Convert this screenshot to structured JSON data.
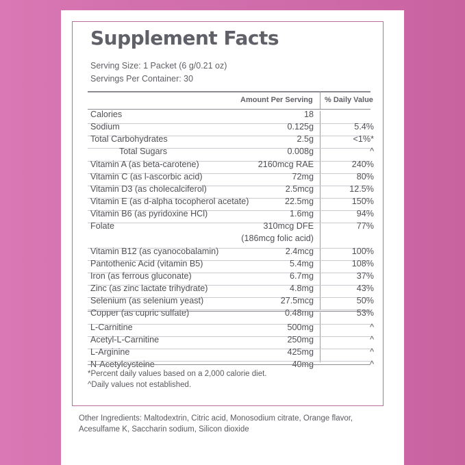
{
  "title": "Supplement Facts",
  "serving_size": "Serving Size: 1 Packet (6 g/0.21 oz)",
  "servings_per_container": "Servings Per Container: 30",
  "headers": {
    "amount": "Amount Per Serving",
    "dv": "% Daily Value"
  },
  "rows": [
    {
      "name": "Calories",
      "amount": "18",
      "dv": ""
    },
    {
      "name": "Sodium",
      "amount": "0.125g",
      "dv": "5.4%"
    },
    {
      "name": "Total Carbohydrates",
      "amount": "2.5g",
      "dv": "<1%*"
    },
    {
      "name": "Total Sugars",
      "amount": "0.008g",
      "dv": "^"
    },
    {
      "name": "Vitamin A (as beta-carotene)",
      "amount": "2160mcg RAE",
      "dv": "240%"
    },
    {
      "name": "Vitamin C (as l-ascorbic acid)",
      "amount": "72mg",
      "dv": "80%"
    },
    {
      "name": "Vitamin D3 (as cholecalciferol)",
      "amount": "2.5mcg",
      "dv": "12.5%"
    },
    {
      "name": "Vitamin E (as d-alpha tocopherol acetate)",
      "amount": "22.5mg",
      "dv": "150%"
    },
    {
      "name": "Vitamin B6 (as pyridoxine HCl)",
      "amount": "1.6mg",
      "dv": "94%"
    },
    {
      "name": "Folate",
      "amount": "310mcg DFE",
      "amount2": "(186mcg folic acid)",
      "dv": "77%"
    },
    {
      "name": "Vitamin B12 (as cyanocobalamin)",
      "amount": "2.4mcg",
      "dv": "100%"
    },
    {
      "name": "Pantothenic Acid (vitamin B5)",
      "amount": "5.4mg",
      "dv": "108%"
    },
    {
      "name": "Iron (as ferrous gluconate)",
      "amount": "6.7mg",
      "dv": "37%"
    },
    {
      "name": "Zinc (as zinc lactate trihydrate)",
      "amount": "4.8mg",
      "dv": "43%"
    },
    {
      "name": "Selenium (as selenium yeast)",
      "amount": "27.5mcg",
      "dv": "50%"
    },
    {
      "name": "Copper (as cupric sulfate)",
      "amount": "0.48mg",
      "dv": "53%"
    },
    {
      "name": "L-Carnitine",
      "amount": "500mg",
      "dv": "^"
    },
    {
      "name": "Acetyl-L-Carnitine",
      "amount": "250mg",
      "dv": "^"
    },
    {
      "name": "L-Arginine",
      "amount": "425mg",
      "dv": "^"
    },
    {
      "name": "N-Acetylcysteine",
      "amount": "40mg",
      "dv": "^"
    }
  ],
  "footnote1": "*Percent daily values based on a 2,000 calorie diet.",
  "footnote2": "^Daily values not established.",
  "other_ingredients": "Other Ingredients:  Maltodextrin, Citric acid, Monosodium citrate, Orange flavor, Acesulfame K, Saccharin sodium, Silicon dioxide"
}
